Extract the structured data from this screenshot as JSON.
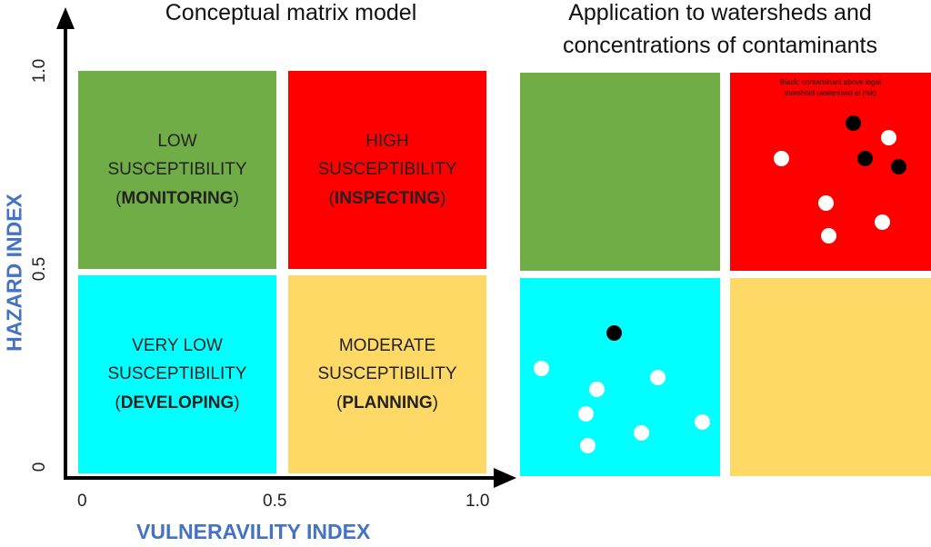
{
  "left_panel": {
    "title": "Conceptual matrix model",
    "quadrants": [
      {
        "id": "low",
        "line1": "LOW",
        "line2": "SUSCEPTIBILITY",
        "action": "MONITORING",
        "color": "#70ad47"
      },
      {
        "id": "high",
        "line1": "HIGH",
        "line2": "SUSCEPTIBILITY",
        "action": "INSPECTING",
        "color": "#ff0000"
      },
      {
        "id": "very-low",
        "line1": "VERY LOW",
        "line2": "SUSCEPTIBILITY",
        "action": "DEVELOPING",
        "color": "#00ffff"
      },
      {
        "id": "moderate",
        "line1": "MODERATE",
        "line2": "SUSCEPTIBILITY",
        "action": "PLANNING",
        "color": "#ffd966"
      }
    ]
  },
  "right_panel": {
    "title_line1": "Application to watersheds and",
    "title_line2": "concentrations of contaminants",
    "note_line1": "Black: contaminant above legal",
    "note_line2": "threshold (watershed at risk)",
    "quadrant_colors": {
      "top_left": "#70ad47",
      "top_right": "#ff0000",
      "bottom_left": "#00ffff",
      "bottom_right": "#ffd966"
    },
    "points": [
      {
        "quadrant": "top-right",
        "color": "black"
      },
      {
        "quadrant": "top-right",
        "color": "white"
      },
      {
        "quadrant": "top-right",
        "color": "white"
      },
      {
        "quadrant": "top-right",
        "color": "black"
      },
      {
        "quadrant": "top-right",
        "color": "black"
      },
      {
        "quadrant": "top-right",
        "color": "white"
      },
      {
        "quadrant": "top-right",
        "color": "white"
      },
      {
        "quadrant": "top-right",
        "color": "white"
      },
      {
        "quadrant": "bottom-left",
        "color": "black"
      },
      {
        "quadrant": "bottom-left",
        "color": "white"
      },
      {
        "quadrant": "bottom-left",
        "color": "white"
      },
      {
        "quadrant": "bottom-left",
        "color": "white"
      },
      {
        "quadrant": "bottom-left",
        "color": "white"
      },
      {
        "quadrant": "bottom-left",
        "color": "white"
      },
      {
        "quadrant": "bottom-left",
        "color": "white"
      },
      {
        "quadrant": "bottom-left",
        "color": "white"
      }
    ]
  },
  "axes": {
    "y_label": "HAZARD INDEX",
    "x_label": "VULNERAVILITY INDEX",
    "y_ticks": [
      "1.0",
      "0.5",
      "0"
    ],
    "x_ticks": [
      "0",
      "0.5",
      "1.0"
    ],
    "label_color": "#4472c4"
  }
}
